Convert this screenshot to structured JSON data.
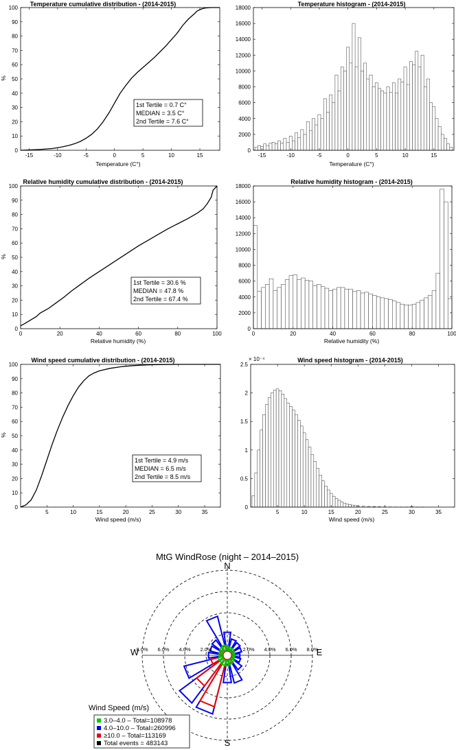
{
  "chart_data": [
    {
      "type": "line",
      "title": "Temperature cumulative distribution - (2014-2015)",
      "xlabel": "Temperature (C°)",
      "ylabel": "%",
      "xlim": [
        -16.5,
        18.5
      ],
      "ylim": [
        0,
        100
      ],
      "xticks": [
        -15,
        -10,
        -5,
        0,
        5,
        10,
        15
      ],
      "yticks": [
        0,
        10,
        20,
        30,
        40,
        50,
        60,
        70,
        80,
        90,
        100
      ],
      "x": [
        -16.5,
        -15,
        -13,
        -11,
        -10,
        -9,
        -8,
        -7,
        -6,
        -5,
        -4,
        -3,
        -2.5,
        -2,
        -1.5,
        -1,
        -0.5,
        0,
        0.5,
        1,
        2,
        3,
        4,
        5,
        6,
        7,
        8,
        9,
        10,
        11,
        12,
        13,
        14,
        14.5,
        15,
        15.5,
        16,
        17,
        18.5
      ],
      "values": [
        0,
        0.2,
        0.6,
        1.2,
        1.8,
        2.5,
        3.4,
        4.6,
        6.2,
        8.4,
        11.2,
        15,
        17.5,
        20,
        23,
        26,
        29.5,
        33,
        36.5,
        40,
        45.5,
        50.5,
        54.5,
        58,
        61.5,
        65,
        69,
        73,
        77.5,
        82,
        87.5,
        92,
        95.5,
        97.5,
        98.5,
        99.3,
        99.7,
        100,
        100
      ],
      "annotations": [
        "1st Tertile = 0.7 C°",
        "MEDIAN = 3.5 C°",
        "2nd Tertile = 7.6 C°"
      ]
    },
    {
      "type": "bar",
      "title": "Temperature histogram - (2014-2015)",
      "xlabel": "Temperature (C°)",
      "ylabel": "",
      "xlim": [
        -16.5,
        18.5
      ],
      "ylim": [
        0,
        18000
      ],
      "xticks": [
        -15,
        -10,
        -5,
        0,
        5,
        10,
        15
      ],
      "yticks": [
        0,
        2000,
        4000,
        6000,
        8000,
        10000,
        12000,
        14000,
        16000,
        18000
      ],
      "x": [
        -16,
        -15.5,
        -15,
        -14.5,
        -14,
        -13.5,
        -13,
        -12.5,
        -12,
        -11.5,
        -11,
        -10.5,
        -10,
        -9.5,
        -9,
        -8.5,
        -8,
        -7.5,
        -7,
        -6.5,
        -6,
        -5.5,
        -5,
        -4.5,
        -4,
        -3.5,
        -3,
        -2.5,
        -2,
        -1.5,
        -1,
        -0.5,
        0,
        0.5,
        1,
        1.5,
        2,
        2.5,
        3,
        3.5,
        4,
        4.5,
        5,
        5.5,
        6,
        6.5,
        7,
        7.5,
        8,
        8.5,
        9,
        9.5,
        10,
        10.5,
        11,
        11.5,
        12,
        12.5,
        13,
        13.5,
        14,
        14.5,
        15,
        15.5,
        16,
        16.5,
        17,
        17.5,
        18
      ],
      "values": [
        400,
        600,
        500,
        800,
        600,
        900,
        1000,
        800,
        1200,
        900,
        1500,
        1000,
        1800,
        1200,
        2200,
        1600,
        2600,
        2000,
        3600,
        2500,
        4000,
        3200,
        4500,
        4000,
        6500,
        4800,
        7000,
        6000,
        9500,
        7500,
        10500,
        10000,
        13000,
        11000,
        16000,
        10500,
        14200,
        10000,
        11000,
        9000,
        9500,
        8000,
        8500,
        7800,
        7500,
        7200,
        8000,
        7300,
        8500,
        7200,
        9000,
        8600,
        10500,
        8300,
        11200,
        10800,
        12500,
        10500,
        12000,
        8000,
        9000,
        6000,
        5500,
        4000,
        3000,
        2000,
        1500,
        800,
        400
      ]
    },
    {
      "type": "line",
      "title": "Relative humidity cumulative distribution - (2014-2015)",
      "xlabel": "Relative humidity (%)",
      "ylabel": "%",
      "xlim": [
        0,
        100
      ],
      "ylim": [
        0,
        100
      ],
      "xticks": [
        0,
        20,
        40,
        60,
        80,
        100
      ],
      "yticks": [
        0,
        10,
        20,
        30,
        40,
        50,
        60,
        70,
        80,
        90,
        100
      ],
      "x": [
        0,
        2,
        5,
        8,
        10,
        14,
        18,
        22,
        26,
        30,
        35,
        40,
        45,
        50,
        55,
        60,
        65,
        70,
        75,
        80,
        85,
        90,
        93,
        95,
        97,
        98,
        100
      ],
      "values": [
        2,
        3.5,
        6,
        8.5,
        11,
        14,
        18,
        22,
        26.5,
        30.5,
        35.5,
        40,
        44.5,
        49,
        53.5,
        58,
        62,
        66,
        70,
        73.5,
        77,
        81,
        84,
        87.5,
        92,
        97,
        100
      ],
      "annotations": [
        "1st Tertile = 30.6 %",
        "MEDIAN = 47.8 %",
        "2nd Tertile = 67.4 %"
      ]
    },
    {
      "type": "bar",
      "title": "Relative humidity histogram - (2014-2015)",
      "xlabel": "Relative humidity (%)",
      "ylabel": "",
      "xlim": [
        0,
        100
      ],
      "ylim": [
        0,
        18000
      ],
      "xticks": [
        0,
        20,
        40,
        60,
        80,
        100
      ],
      "yticks": [
        0,
        2000,
        4000,
        6000,
        8000,
        10000,
        12000,
        14000,
        16000,
        18000
      ],
      "x": [
        1,
        3,
        5,
        7,
        9,
        11,
        13,
        15,
        17,
        19,
        21,
        23,
        25,
        27,
        29,
        31,
        33,
        35,
        37,
        39,
        41,
        43,
        45,
        47,
        49,
        51,
        53,
        55,
        57,
        59,
        61,
        63,
        65,
        67,
        69,
        71,
        73,
        75,
        77,
        79,
        81,
        83,
        85,
        87,
        89,
        91,
        93,
        95,
        97,
        99
      ],
      "values": [
        13000,
        4700,
        5200,
        5600,
        6300,
        4800,
        5200,
        5600,
        6200,
        6700,
        6800,
        6200,
        6400,
        6100,
        6000,
        5400,
        5600,
        5300,
        5100,
        4800,
        5000,
        5200,
        5200,
        5000,
        5000,
        4700,
        4800,
        4500,
        4600,
        4400,
        4200,
        4000,
        3900,
        3800,
        3700,
        3500,
        3300,
        3100,
        3000,
        3000,
        3100,
        3300,
        3600,
        3900,
        4200,
        4800,
        7000,
        17600,
        16000,
        3800
      ]
    },
    {
      "type": "line",
      "title": "Wind speed cumulative distribution - (2014-2015)",
      "xlabel": "Wind speed (m/s)",
      "ylabel": "%",
      "xlim": [
        0,
        38
      ],
      "ylim": [
        0,
        100
      ],
      "xticks": [
        5,
        10,
        15,
        20,
        25,
        30,
        35
      ],
      "yticks": [
        0,
        10,
        20,
        30,
        40,
        50,
        60,
        70,
        80,
        90,
        100
      ],
      "x": [
        0,
        1,
        2,
        3,
        4,
        5,
        6,
        7,
        8,
        9,
        10,
        11,
        12,
        13,
        14,
        15,
        17,
        19,
        21,
        23,
        25,
        30,
        38
      ],
      "values": [
        0,
        1.5,
        5,
        12,
        22,
        33,
        44,
        54,
        63,
        71,
        78,
        84,
        88.5,
        92,
        94,
        95.5,
        97.2,
        98.3,
        99,
        99.5,
        99.8,
        100,
        100
      ],
      "annotations": [
        "1st Tertile = 4.9 m/s",
        "MEDIAN = 6.5 m/s",
        "2nd Tertile = 8.5 m/s"
      ]
    },
    {
      "type": "bar",
      "title": "Wind speed histogram - (2014-2015)",
      "xlabel": "Wind speed (m/s)",
      "ylabel": "",
      "multiplier": "× 10⁻⁴",
      "xlim": [
        0,
        38
      ],
      "ylim": [
        0,
        2.5
      ],
      "xticks": [
        5,
        10,
        15,
        20,
        25,
        30,
        35
      ],
      "yticks": [
        0,
        0.5,
        1,
        1.5,
        2,
        2.5
      ],
      "x": [
        0.5,
        1,
        1.5,
        2,
        2.5,
        3,
        3.5,
        4,
        4.5,
        5,
        5.5,
        6,
        6.5,
        7,
        7.5,
        8,
        8.5,
        9,
        9.5,
        10,
        10.5,
        11,
        11.5,
        12,
        12.5,
        13,
        13.5,
        14,
        14.5,
        15,
        15.5,
        16,
        16.5,
        17,
        17.5,
        18,
        18.5,
        19,
        19.5,
        20,
        21,
        22,
        23,
        24,
        25,
        26,
        27,
        28,
        29,
        30,
        31,
        32
      ],
      "values": [
        0.2,
        0.6,
        1.0,
        1.35,
        1.62,
        1.8,
        1.92,
        2.0,
        2.05,
        2.07,
        2.04,
        1.98,
        1.9,
        1.82,
        1.76,
        1.7,
        1.62,
        1.52,
        1.42,
        1.3,
        1.18,
        1.05,
        0.92,
        0.8,
        0.68,
        0.56,
        0.46,
        0.37,
        0.3,
        0.24,
        0.19,
        0.15,
        0.12,
        0.09,
        0.07,
        0.055,
        0.045,
        0.035,
        0.028,
        0.022,
        0.016,
        0.012,
        0.009,
        0.007,
        0.005,
        0.004,
        0.003,
        0.002,
        0.002,
        0.008,
        0.001,
        0.001
      ]
    },
    {
      "type": "windrose",
      "title": "MtG WindRose (night – 2014–2015)",
      "cardinals": {
        "n": "N",
        "e": "E",
        "s": "S",
        "w": "W"
      },
      "rings": [
        2,
        4,
        6,
        8
      ],
      "ring_labels_w": [
        "8.0%",
        "6.0%",
        "4.0%",
        "2.0%"
      ],
      "ring_labels_e": [
        "2.0%",
        "4.0%",
        "6.0%",
        "8.0%"
      ],
      "legend_title": "Wind Speed (m/s)",
      "colors": {
        "calm": "#00cc00",
        "mid": "#0000ee",
        "high": "#ee0000",
        "total": "#000000"
      },
      "sectors": [
        {
          "dir": 0,
          "calm": 0.5,
          "mid": 1.8,
          "high": 0.3
        },
        {
          "dir": 22.5,
          "calm": 0.4,
          "mid": 1.2,
          "high": 0.2
        },
        {
          "dir": 45,
          "calm": 0.4,
          "mid": 1.1,
          "high": 0.2
        },
        {
          "dir": 67.5,
          "calm": 0.3,
          "mid": 1.0,
          "high": 0.2
        },
        {
          "dir": 90,
          "calm": 0.3,
          "mid": 0.8,
          "high": 0.2
        },
        {
          "dir": 112.5,
          "calm": 0.3,
          "mid": 0.9,
          "high": 0.2
        },
        {
          "dir": 135,
          "calm": 0.4,
          "mid": 1.3,
          "high": 0.2
        },
        {
          "dir": 157.5,
          "calm": 0.5,
          "mid": 2.3,
          "high": 0.4
        },
        {
          "dir": 180,
          "calm": 0.6,
          "mid": 2.2,
          "high": 0.5
        },
        {
          "dir": 202.5,
          "calm": 0.6,
          "mid": 5.3,
          "high": 4.6
        },
        {
          "dir": 225,
          "calm": 0.5,
          "mid": 5.2,
          "high": 3.2
        },
        {
          "dir": 247.5,
          "calm": 0.5,
          "mid": 3.8,
          "high": 1.2
        },
        {
          "dir": 270,
          "calm": 0.4,
          "mid": 1.4,
          "high": 0.3
        },
        {
          "dir": 292.5,
          "calm": 0.4,
          "mid": 1.3,
          "high": 0.3
        },
        {
          "dir": 315,
          "calm": 0.5,
          "mid": 1.4,
          "high": 0.3
        },
        {
          "dir": 337.5,
          "calm": 0.6,
          "mid": 3.4,
          "high": 0.5
        }
      ],
      "legend": [
        "3.0–4.0 – Total=108978",
        "4.0–10.0 – Total=260996",
        "≥10.0 – Total=113169",
        "Total events = 483143"
      ]
    }
  ]
}
